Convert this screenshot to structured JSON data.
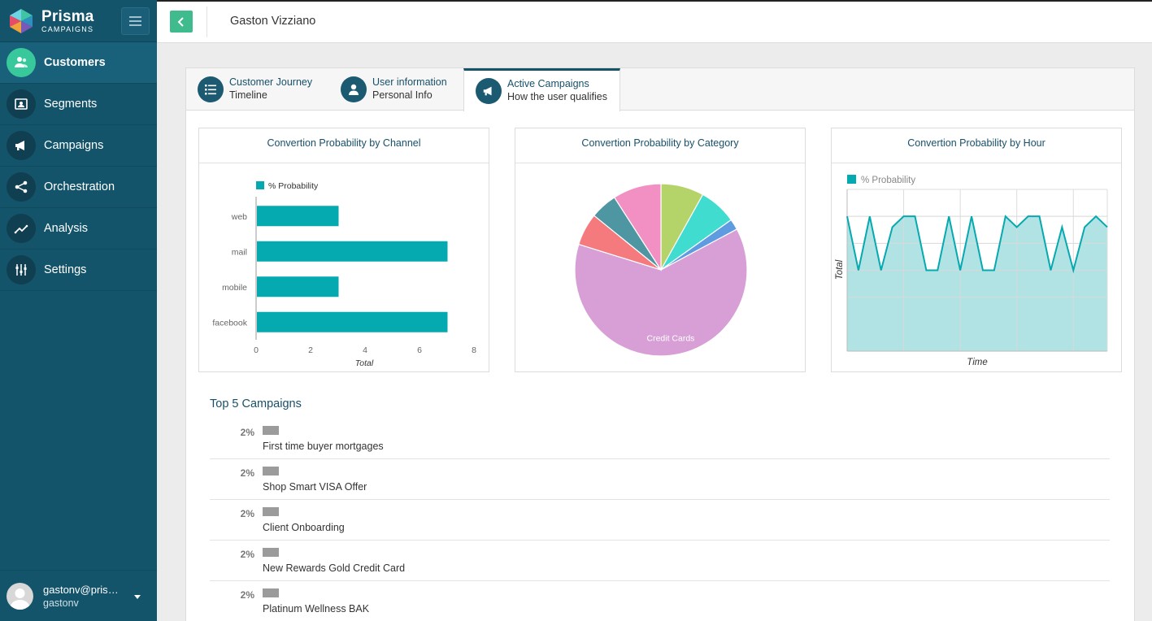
{
  "brand": {
    "name": "Prisma",
    "sub": "CAMPAIGNS"
  },
  "sidebar": {
    "items": [
      {
        "label": "Customers",
        "icon": "customers-icon",
        "active": true
      },
      {
        "label": "Segments",
        "icon": "segments-icon"
      },
      {
        "label": "Campaigns",
        "icon": "megaphone-icon"
      },
      {
        "label": "Orchestration",
        "icon": "share-icon"
      },
      {
        "label": "Analysis",
        "icon": "trend-icon"
      },
      {
        "label": "Settings",
        "icon": "sliders-icon"
      }
    ],
    "user": {
      "email": "gastonv@prism...",
      "username": "gastonv"
    }
  },
  "header": {
    "title": "Gaston Vizziano"
  },
  "tabs": [
    {
      "title": "Customer Journey",
      "sub": "Timeline",
      "icon": "list-icon"
    },
    {
      "title": "User information",
      "sub": "Personal Info",
      "icon": "user-icon"
    },
    {
      "title": "Active Campaigns",
      "sub": "How the user qualifies",
      "icon": "megaphone-icon",
      "active": true
    }
  ],
  "colors": {
    "sidebar": "#13546b",
    "accent": "#3fbb8e",
    "bar": "#05a9b0"
  },
  "charts": {
    "channel_title": "Convertion Probability by Channel",
    "category_title": "Convertion Probability by Category",
    "hour_title": "Convertion Probability by Hour"
  },
  "chart_data": [
    {
      "type": "bar",
      "orientation": "horizontal",
      "title": "Convertion Probability by Channel",
      "categories": [
        "web",
        "mail",
        "mobile",
        "facebook"
      ],
      "series": [
        {
          "name": "% Probability",
          "values": [
            3,
            7,
            3,
            7
          ]
        }
      ],
      "xlabel": "Total",
      "xticks": [
        "0",
        "2",
        "4",
        "6",
        "8"
      ],
      "xlim": [
        0,
        8
      ],
      "legend": "top"
    },
    {
      "type": "pie",
      "title": "Convertion Probability by Category",
      "slices": [
        {
          "label": "",
          "value": 8,
          "color": "#b4d46a"
        },
        {
          "label": "",
          "value": 7,
          "color": "#3fdccf"
        },
        {
          "label": "",
          "value": 2,
          "color": "#5f9be0"
        },
        {
          "label": "Credit Cards",
          "value": 62,
          "color": "#d79fd6"
        },
        {
          "label": "",
          "value": 6,
          "color": "#f47a7e"
        },
        {
          "label": "",
          "value": 5,
          "color": "#4f96a3"
        },
        {
          "label": "",
          "value": 9,
          "color": "#f290c4"
        }
      ]
    },
    {
      "type": "area",
      "title": "Convertion Probability by Hour",
      "series": [
        {
          "name": "% Probability",
          "values": [
            5,
            3,
            5,
            3,
            4.6,
            5,
            5,
            3,
            3,
            5,
            3,
            5,
            3,
            3,
            5,
            4.6,
            5,
            5,
            3,
            4.6,
            3,
            4.6,
            5,
            4.6
          ]
        }
      ],
      "xlabel": "Time",
      "ylabel": "Total",
      "ylim": [
        0,
        6
      ],
      "legend": "top-left",
      "grid": true
    }
  ],
  "top5": {
    "title": "Top 5 Campaigns",
    "items": [
      {
        "pct": "2%",
        "name": "First time buyer mortgages"
      },
      {
        "pct": "2%",
        "name": "Shop Smart VISA Offer"
      },
      {
        "pct": "2%",
        "name": "Client Onboarding"
      },
      {
        "pct": "2%",
        "name": "New Rewards Gold Credit Card"
      },
      {
        "pct": "2%",
        "name": "Platinum Wellness BAK"
      }
    ]
  }
}
